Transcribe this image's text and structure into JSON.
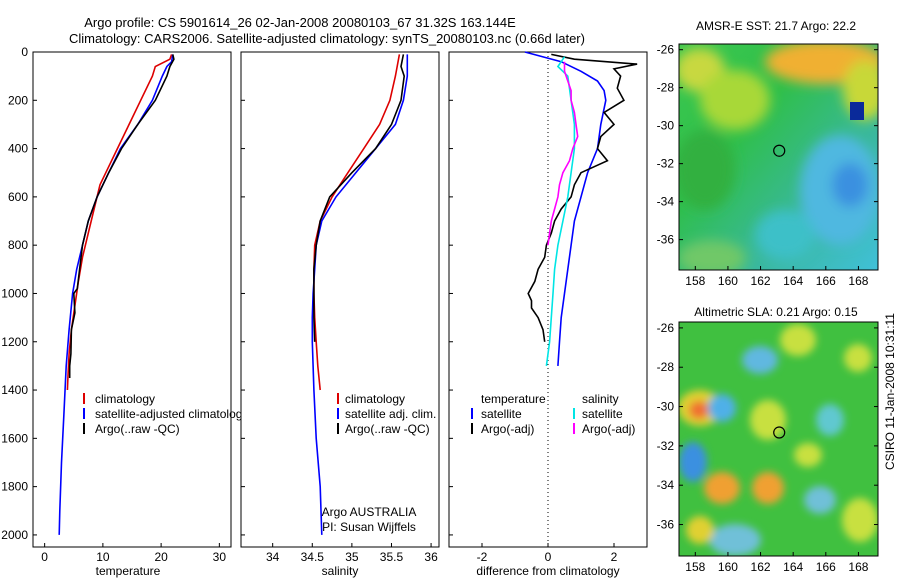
{
  "title": {
    "line1": "Argo profile: CS 5901614_26 02-Jan-2008 20080103_67 31.32S 163.144E",
    "line2": "Climatology: CARS2006. Satellite-adjusted climatology: synTS_20080103.nc (0.66d later)"
  },
  "colors": {
    "climatology": "#dd0000",
    "satellite": "#0000ff",
    "argo": "#000000",
    "salinity_satellite": "#00e5e5",
    "salinity_argo": "#ff00ff"
  },
  "chart_data": [
    {
      "type": "line",
      "id": "temperature",
      "xlabel": "temperature",
      "ylabel": "",
      "xlim": [
        -2,
        32
      ],
      "ylim": [
        2050,
        0
      ],
      "xticks": [
        "0",
        "10",
        "20",
        "30"
      ],
      "yticks": [
        "0",
        "200",
        "400",
        "600",
        "800",
        "1000",
        "1200",
        "1400",
        "1600",
        "1800",
        "2000"
      ],
      "series": [
        {
          "name": "climatology",
          "color": "#dd0000",
          "points": [
            [
              21.8,
              10
            ],
            [
              21.5,
              30
            ],
            [
              19.0,
              60
            ],
            [
              18.5,
              100
            ],
            [
              16.5,
              200
            ],
            [
              14.5,
              300
            ],
            [
              12.5,
              400
            ],
            [
              10.5,
              500
            ],
            [
              9.5,
              550
            ],
            [
              8.5,
              650
            ],
            [
              7.5,
              750
            ],
            [
              6.5,
              850
            ],
            [
              5.8,
              950
            ],
            [
              5.2,
              1050
            ],
            [
              4.6,
              1150
            ],
            [
              4.2,
              1250
            ],
            [
              4.0,
              1350
            ],
            [
              3.9,
              1400
            ]
          ]
        },
        {
          "name": "satellite-adjusted climatology",
          "color": "#0000ff",
          "points": [
            [
              22.0,
              10
            ],
            [
              21.8,
              40
            ],
            [
              21.0,
              60
            ],
            [
              20.2,
              100
            ],
            [
              18.5,
              200
            ],
            [
              16.0,
              300
            ],
            [
              13.0,
              400
            ],
            [
              11.0,
              500
            ],
            [
              9.0,
              600
            ],
            [
              7.5,
              700
            ],
            [
              6.5,
              800
            ],
            [
              5.5,
              900
            ],
            [
              4.8,
              1000
            ],
            [
              4.2,
              1150
            ],
            [
              3.7,
              1300
            ],
            [
              3.3,
              1500
            ],
            [
              2.9,
              1700
            ],
            [
              2.6,
              1900
            ],
            [
              2.5,
              2000
            ]
          ]
        },
        {
          "name": "Argo(..raw -QC)",
          "color": "#000000",
          "points": [
            [
              22.0,
              10
            ],
            [
              22.2,
              30
            ],
            [
              21.5,
              60
            ],
            [
              21.0,
              100
            ],
            [
              19.0,
              200
            ],
            [
              16.0,
              300
            ],
            [
              13.2,
              400
            ],
            [
              11.0,
              500
            ],
            [
              9.0,
              600
            ],
            [
              7.5,
              700
            ],
            [
              6.5,
              800
            ],
            [
              6.0,
              900
            ],
            [
              5.6,
              980
            ],
            [
              5.0,
              1000
            ],
            [
              5.2,
              1080
            ],
            [
              4.6,
              1150
            ],
            [
              4.5,
              1250
            ],
            [
              4.3,
              1300
            ],
            [
              4.3,
              1350
            ]
          ]
        }
      ],
      "legend": {
        "placement": "bottom-center",
        "entries": [
          "climatology",
          "satellite-adjusted climatology",
          "Argo(..raw -QC)"
        ]
      }
    },
    {
      "type": "line",
      "id": "salinity",
      "xlabel": "salinity",
      "ylabel": "",
      "xlim": [
        33.6,
        36.1
      ],
      "ylim": [
        2050,
        0
      ],
      "xticks": [
        "34",
        "34.5",
        "35",
        "35.5",
        "36"
      ],
      "series": [
        {
          "name": "climatology",
          "color": "#dd0000",
          "points": [
            [
              35.6,
              10
            ],
            [
              35.55,
              100
            ],
            [
              35.48,
              200
            ],
            [
              35.35,
              300
            ],
            [
              35.15,
              400
            ],
            [
              34.95,
              500
            ],
            [
              34.75,
              600
            ],
            [
              34.6,
              700
            ],
            [
              34.53,
              800
            ],
            [
              34.52,
              900
            ],
            [
              34.52,
              1000
            ],
            [
              34.53,
              1100
            ],
            [
              34.55,
              1200
            ],
            [
              34.57,
              1300
            ],
            [
              34.6,
              1400
            ]
          ]
        },
        {
          "name": "satellite adj. clim.",
          "color": "#0000ff",
          "points": [
            [
              35.7,
              10
            ],
            [
              35.7,
              100
            ],
            [
              35.65,
              200
            ],
            [
              35.55,
              300
            ],
            [
              35.3,
              400
            ],
            [
              35.05,
              500
            ],
            [
              34.8,
              600
            ],
            [
              34.62,
              700
            ],
            [
              34.55,
              800
            ],
            [
              34.53,
              900
            ],
            [
              34.51,
              1000
            ],
            [
              34.5,
              1100
            ],
            [
              34.5,
              1200
            ],
            [
              34.52,
              1400
            ],
            [
              34.55,
              1600
            ],
            [
              34.6,
              1800
            ],
            [
              34.62,
              2000
            ]
          ]
        },
        {
          "name": "Argo(..raw -QC)",
          "color": "#000000",
          "points": [
            [
              35.65,
              10
            ],
            [
              35.62,
              60
            ],
            [
              35.66,
              100
            ],
            [
              35.62,
              200
            ],
            [
              35.5,
              300
            ],
            [
              35.3,
              400
            ],
            [
              35.0,
              500
            ],
            [
              34.72,
              600
            ],
            [
              34.6,
              700
            ],
            [
              34.55,
              800
            ],
            [
              34.52,
              900
            ],
            [
              34.52,
              1000
            ],
            [
              34.52,
              1100
            ],
            [
              34.53,
              1200
            ]
          ]
        }
      ],
      "legend": {
        "placement": "bottom-center",
        "entries": [
          "climatology",
          "satellite adj. clim.",
          "Argo(..raw -QC)"
        ]
      },
      "annotation": [
        "Argo AUSTRALIA",
        "PI: Susan Wijffels"
      ]
    },
    {
      "type": "line",
      "id": "difference",
      "xlabel": "difference from climatology",
      "ylabel": "",
      "xlim": [
        -3,
        3
      ],
      "ylim": [
        2050,
        0
      ],
      "xticks": [
        "-2",
        "0",
        "2"
      ],
      "series": [
        {
          "name": "temperature satellite",
          "color": "#0000ff",
          "points": [
            [
              -0.7,
              0
            ],
            [
              0.4,
              40
            ],
            [
              1.0,
              80
            ],
            [
              1.5,
              120
            ],
            [
              1.7,
              160
            ],
            [
              1.75,
              200
            ],
            [
              1.6,
              300
            ],
            [
              1.5,
              400
            ],
            [
              1.2,
              500
            ],
            [
              1.0,
              600
            ],
            [
              0.8,
              700
            ],
            [
              0.7,
              800
            ],
            [
              0.6,
              900
            ],
            [
              0.5,
              1000
            ],
            [
              0.4,
              1100
            ],
            [
              0.35,
              1200
            ],
            [
              0.3,
              1300
            ]
          ]
        },
        {
          "name": "temperature Argo(-adj)",
          "color": "#000000",
          "points": [
            [
              0.1,
              10
            ],
            [
              0.8,
              30
            ],
            [
              2.7,
              50
            ],
            [
              2.0,
              70
            ],
            [
              2.2,
              100
            ],
            [
              2.1,
              150
            ],
            [
              2.3,
              200
            ],
            [
              1.7,
              250
            ],
            [
              2.0,
              300
            ],
            [
              1.6,
              350
            ],
            [
              1.5,
              400
            ],
            [
              1.8,
              450
            ],
            [
              1.0,
              500
            ],
            [
              0.8,
              550
            ],
            [
              0.7,
              600
            ],
            [
              0.4,
              650
            ],
            [
              0.2,
              700
            ],
            [
              0.1,
              750
            ],
            [
              -0.05,
              800
            ],
            [
              -0.1,
              850
            ],
            [
              -0.3,
              900
            ],
            [
              -0.4,
              950
            ],
            [
              -0.6,
              1000
            ],
            [
              -0.5,
              1030
            ],
            [
              -0.5,
              1060
            ],
            [
              -0.3,
              1100
            ],
            [
              -0.15,
              1150
            ],
            [
              -0.1,
              1200
            ]
          ]
        },
        {
          "name": "salinity satellite",
          "color": "#00e5e5",
          "points": [
            [
              0.5,
              20
            ],
            [
              0.3,
              60
            ],
            [
              0.6,
              100
            ],
            [
              0.7,
              200
            ],
            [
              0.8,
              300
            ],
            [
              0.8,
              400
            ],
            [
              0.7,
              500
            ],
            [
              0.6,
              600
            ],
            [
              0.45,
              700
            ],
            [
              0.3,
              800
            ],
            [
              0.2,
              900
            ],
            [
              0.15,
              1000
            ],
            [
              0.1,
              1100
            ],
            [
              0.05,
              1200
            ],
            [
              -0.05,
              1300
            ]
          ]
        },
        {
          "name": "salinity Argo(-adj)",
          "color": "#ff00ff",
          "points": [
            [
              0.5,
              40
            ],
            [
              0.5,
              80
            ],
            [
              0.6,
              120
            ],
            [
              0.7,
              160
            ],
            [
              0.7,
              200
            ],
            [
              0.8,
              250
            ],
            [
              0.85,
              300
            ],
            [
              0.9,
              350
            ],
            [
              0.75,
              400
            ],
            [
              0.65,
              450
            ],
            [
              0.45,
              500
            ],
            [
              0.35,
              550
            ],
            [
              0.3,
              600
            ],
            [
              0.2,
              650
            ],
            [
              0.1,
              700
            ],
            [
              0.05,
              750
            ],
            [
              0.0,
              800
            ]
          ]
        }
      ],
      "legend": {
        "placement": "bottom-center",
        "groups": [
          {
            "heading": "temperature",
            "entries": [
              "satellite",
              "Argo(-adj)"
            ]
          },
          {
            "heading": "salinity",
            "entries": [
              "satellite",
              "Argo(-adj)"
            ]
          }
        ]
      }
    },
    {
      "type": "heatmap",
      "id": "sst-map",
      "title": "AMSR-E SST: 21.7  Argo: 22.2",
      "xlim": [
        157,
        169.2
      ],
      "ylim": [
        -37.6,
        -25.7
      ],
      "xticks": [
        "158",
        "160",
        "162",
        "164",
        "166",
        "168"
      ],
      "yticks": [
        "-26",
        "-28",
        "-30",
        "-32",
        "-34",
        "-36"
      ],
      "marker": {
        "x": 163.144,
        "y": -31.32
      }
    },
    {
      "type": "heatmap",
      "id": "sla-map",
      "title": "Altimetric SLA: 0.21  Argo: 0.15",
      "xlim": [
        157,
        169.2
      ],
      "ylim": [
        -37.6,
        -25.7
      ],
      "xticks": [
        "158",
        "160",
        "162",
        "164",
        "166",
        "168"
      ],
      "yticks": [
        "-26",
        "-28",
        "-30",
        "-32",
        "-34",
        "-36"
      ],
      "marker": {
        "x": 163.144,
        "y": -31.32
      }
    }
  ],
  "side_label": "CSIRO 11-Jan-2008 10:31:11"
}
